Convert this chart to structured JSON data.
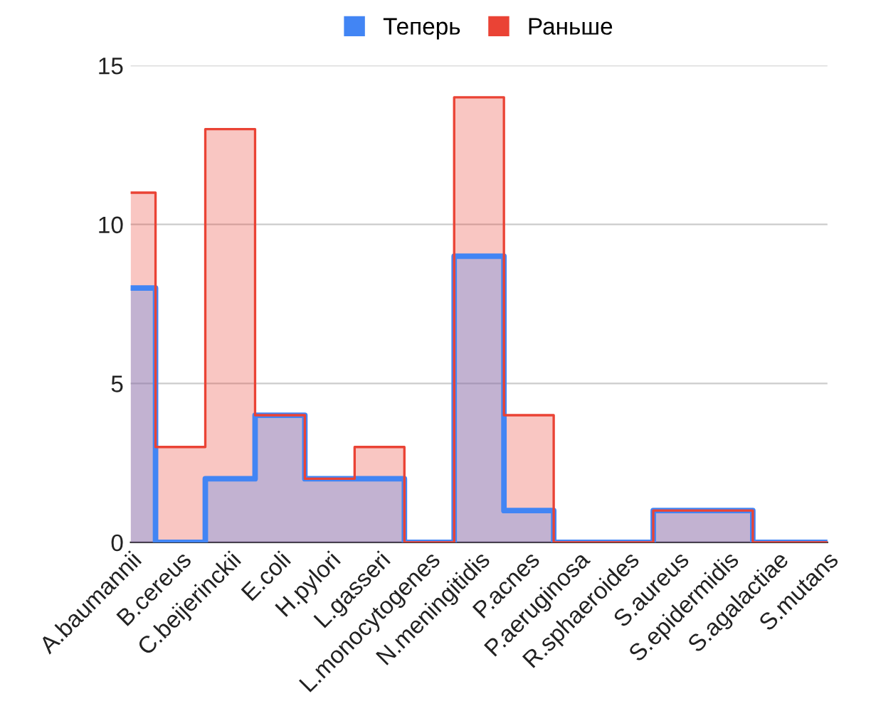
{
  "chart_data": {
    "type": "step",
    "categories": [
      "A.baumannii",
      "B.cereus",
      "C.beijerinckii",
      "E.coli",
      "H.pylori",
      "L.gasseri",
      "L.monocytogenes",
      "N.meningitidis",
      "P.acnes",
      "P.aeruginosa",
      "R.sphaeroides",
      "S.aureus",
      "S.epidermidis",
      "S.agalactiae",
      "S.mutans"
    ],
    "series": [
      {
        "name": "Теперь",
        "color": "#4285f4",
        "values": [
          8,
          0,
          2,
          4,
          2,
          2,
          0,
          9,
          1,
          0,
          0,
          1,
          1,
          0,
          0
        ]
      },
      {
        "name": "Раньше",
        "color": "#ea4335",
        "values": [
          11,
          3,
          13,
          4,
          2,
          3,
          0,
          14,
          4,
          0,
          0,
          1,
          1,
          0,
          0
        ]
      }
    ],
    "ylim": [
      0,
      15
    ],
    "yticks": [
      0,
      5,
      10,
      15
    ],
    "grid": "y",
    "legend": "top"
  }
}
